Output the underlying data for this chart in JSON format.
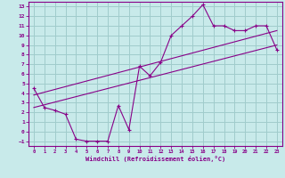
{
  "title": "",
  "xlabel": "Windchill (Refroidissement éolien,°C)",
  "bg_color": "#c8eaea",
  "grid_color": "#a0cccc",
  "line_color": "#880088",
  "xlim": [
    -0.5,
    23.5
  ],
  "ylim": [
    -1.5,
    13.5
  ],
  "xticks": [
    0,
    1,
    2,
    3,
    4,
    5,
    6,
    7,
    8,
    9,
    10,
    11,
    12,
    13,
    14,
    15,
    16,
    17,
    18,
    19,
    20,
    21,
    22,
    23
  ],
  "yticks": [
    -1,
    0,
    1,
    2,
    3,
    4,
    5,
    6,
    7,
    8,
    9,
    10,
    11,
    12,
    13
  ],
  "curve1_x": [
    0,
    1,
    2,
    3,
    4,
    5,
    6,
    7,
    8,
    9,
    10,
    11,
    12,
    13,
    14,
    15,
    16,
    17,
    18,
    19,
    20,
    21,
    22,
    23
  ],
  "curve1_y": [
    4.5,
    2.5,
    2.2,
    1.8,
    -0.8,
    -1.0,
    -1.0,
    -1.0,
    2.7,
    0.2,
    6.8,
    5.8,
    7.2,
    10.0,
    11.0,
    12.0,
    13.2,
    11.0,
    11.0,
    10.5,
    10.5,
    11.0,
    11.0,
    8.5
  ],
  "curve2_x": [
    0,
    23
  ],
  "curve2_y": [
    2.5,
    9.0
  ],
  "curve3_x": [
    0,
    23
  ],
  "curve3_y": [
    3.8,
    10.5
  ]
}
